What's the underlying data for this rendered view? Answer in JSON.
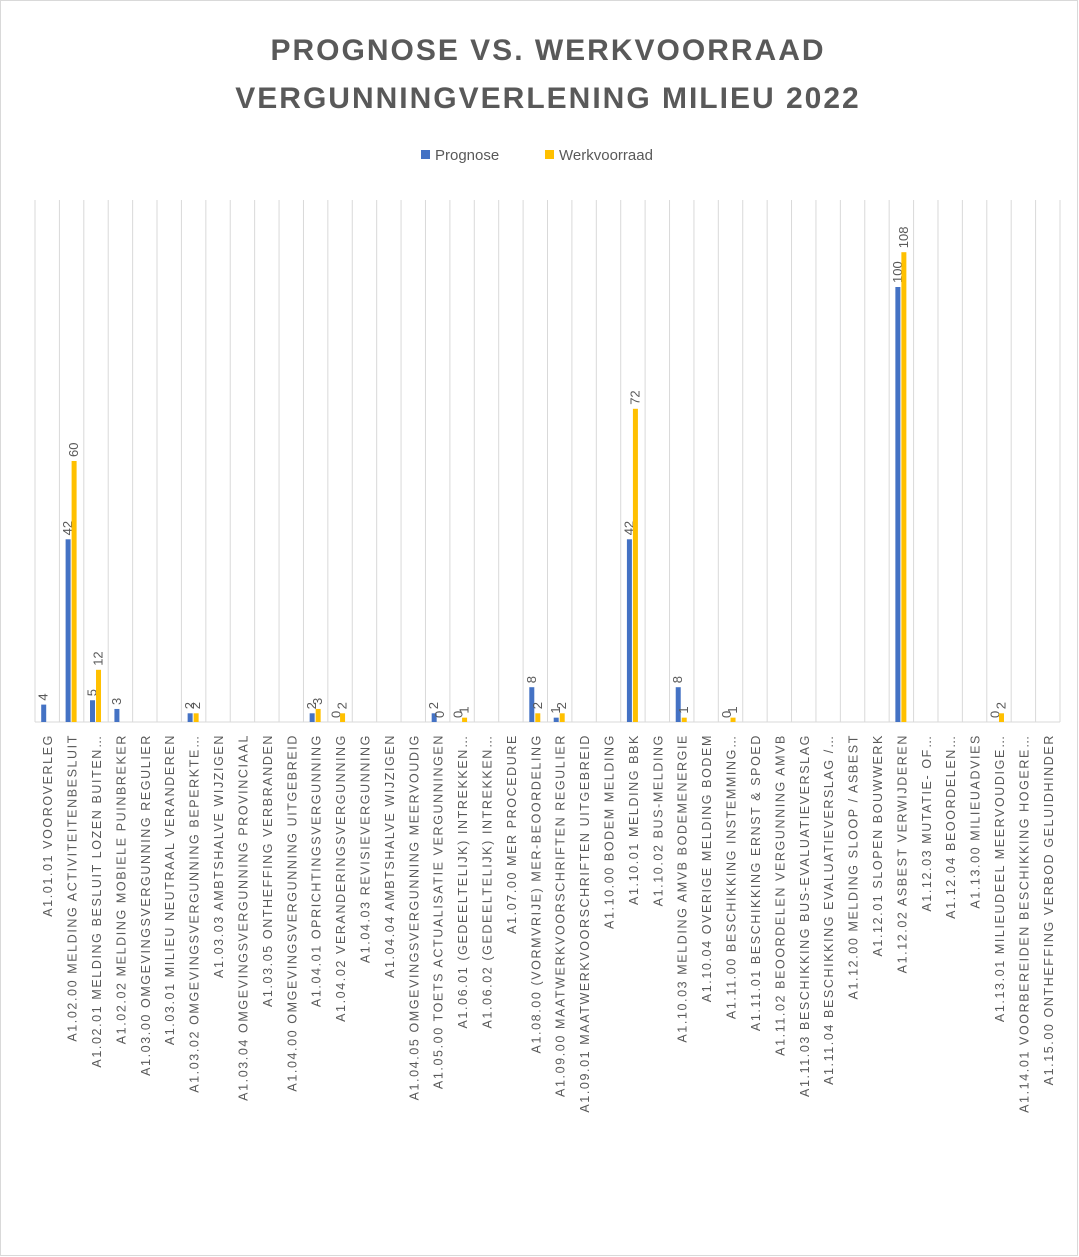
{
  "chart_data": {
    "type": "bar",
    "title": [
      "PROGNOSE VS. WERKVOORRAAD",
      "VERGUNNINGVERLENING MILIEU 2022"
    ],
    "categories": [
      "A1.01.01 VOOROVERLEG",
      "A1.02.00 MELDING ACTIVITEITENBESLUIT",
      "A1.02.01 MELDING BESLUIT LOZEN BUITEN…",
      "A1.02.02 MELDING MOBIELE PUINBREKER",
      "A1.03.00 OMGEVINGSVERGUNNING REGULIER",
      "A1.03.01 MILIEU NEUTRAAL VERANDEREN",
      "A1.03.02 OMGEVINGSVERGUNNING BEPERKTE…",
      "A1.03.03 AMBTSHALVE WIJZIGEN",
      "A1.03.04 OMGEVINGSVERGUNNING PROVINCIAAL",
      "A1.03.05 ONTHEFFING VERBRANDEN",
      "A1.04.00 OMGEVINGSVERGUNNING UITGEBREID",
      "A1.04.01 OPRICHTINGSVERGUNNING",
      "A1.04.02 VERANDERINGSVERGUNNING",
      "A1.04.03 REVISIEVERGUNNING",
      "A1.04.04 AMBTSHALVE WIJZIGEN",
      "A1.04.05 OMGEVINGSVERGUNNING MEERVOUDIG",
      "A1.05.00 TOETS ACTUALISATIE VERGUNNINGEN",
      "A1.06.01 (GEDEELTELIJK) INTREKKEN…",
      "A1.06.02 (GEDEELTELIJK) INTREKKEN…",
      "A1.07.00 MER PROCEDURE",
      "A1.08.00 (VORMVRIJE) MER-BEOORDELING",
      "A1.09.00 MAATWERKVOORSCHRIFTEN REGULIER",
      "A1.09.01 MAATWERKVOORSCHRIFTEN UITGEBREID",
      "A1.10.00 BODEM MELDING",
      "A1.10.01 MELDING BBK",
      "A1.10.02 BUS-MELDING",
      "A1.10.03 MELDING AMVB BODEMENERGIE",
      "A1.10.04 OVERIGE MELDING BODEM",
      "A1.11.00 BESCHIKKING INSTEMMING…",
      "A1.11.01 BESCHIKKING ERNST & SPOED",
      "A1.11.02 BEOORDELEN VERGUNNING AMVB",
      "A1.11.03 BESCHIKKING BUS-EVALUATIEVERSLAG",
      "A1.11.04 BESCHIKKING EVALUATIEVERSLAG /…",
      "A1.12.00 MELDING SLOOP / ASBEST",
      "A1.12.01 SLOPEN BOUWWERK",
      "A1.12.02 ASBEST VERWIJDEREN",
      "A1.12.03 MUTATIE- OF…",
      "A1.12.04 BEOORDELEN…",
      "A1.13.00 MILIEUADVIES",
      "A1.13.01 MILIEUDEEL MEERVOUDIGE…",
      "A1.14.01 VOORBEREIDEN BESCHIKKING HOGERE…",
      "A1.15.00 ONTHEFFING VERBOD GELUIDHINDER"
    ],
    "series": [
      {
        "name": "Prognose",
        "color": "#4472c4",
        "values": [
          4,
          42,
          5,
          3,
          null,
          null,
          2,
          null,
          null,
          null,
          null,
          2,
          0,
          null,
          null,
          null,
          2,
          0,
          null,
          null,
          8,
          1,
          null,
          null,
          42,
          null,
          8,
          null,
          0,
          null,
          null,
          null,
          null,
          null,
          null,
          100,
          null,
          null,
          null,
          0,
          null,
          null
        ]
      },
      {
        "name": "Werkvoorraad",
        "color": "#ffc000",
        "values": [
          null,
          60,
          12,
          null,
          null,
          null,
          2,
          null,
          null,
          null,
          null,
          3,
          2,
          null,
          null,
          null,
          0,
          1,
          null,
          null,
          2,
          2,
          null,
          null,
          72,
          null,
          1,
          null,
          1,
          null,
          null,
          null,
          null,
          null,
          null,
          108,
          null,
          null,
          null,
          2,
          null,
          null
        ]
      }
    ],
    "ylim": [
      0,
      120
    ],
    "legend": "top"
  }
}
